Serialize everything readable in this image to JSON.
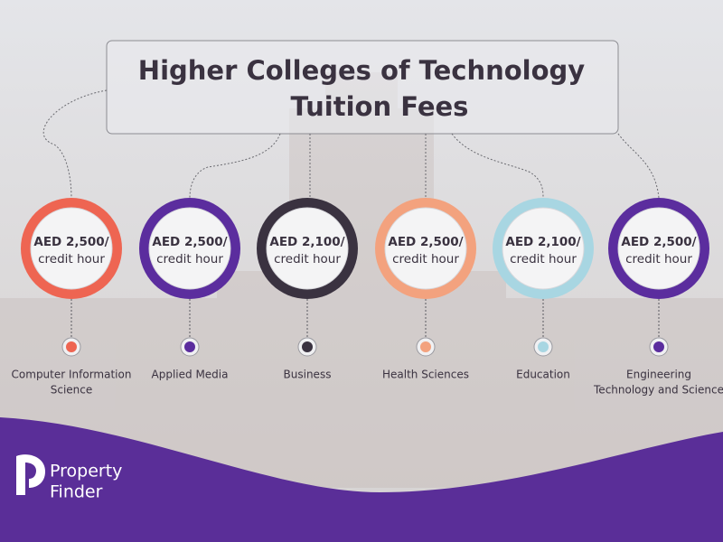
{
  "header": {
    "title": [
      "Higher Colleges of Technology",
      "Tuition Fees"
    ]
  },
  "items": [
    {
      "fee": [
        "AED 2,500/",
        "credit hour"
      ],
      "name": [
        "Computer Information",
        "Science"
      ],
      "color": "#ee6552"
    },
    {
      "fee": [
        "AED 2,500/",
        "credit hour"
      ],
      "name": [
        "Applied Media"
      ],
      "color": "#5b2d9e"
    },
    {
      "fee": [
        "AED 2,100/",
        "credit hour"
      ],
      "name": [
        "Business"
      ],
      "color": "#3a3240"
    },
    {
      "fee": [
        "AED 2,500/",
        "credit hour"
      ],
      "name": [
        "Health Sciences"
      ],
      "color": "#f3a27e"
    },
    {
      "fee": [
        "AED 2,100/",
        "credit hour"
      ],
      "name": [
        "Education"
      ],
      "color": "#a8d6e2"
    },
    {
      "fee": [
        "AED 2,500/",
        "credit hour"
      ],
      "name": [
        "Engineering",
        "Technology and Science"
      ],
      "color": "#5b2d9e"
    }
  ],
  "footer": {
    "logo": [
      "Property",
      "Finder"
    ]
  }
}
